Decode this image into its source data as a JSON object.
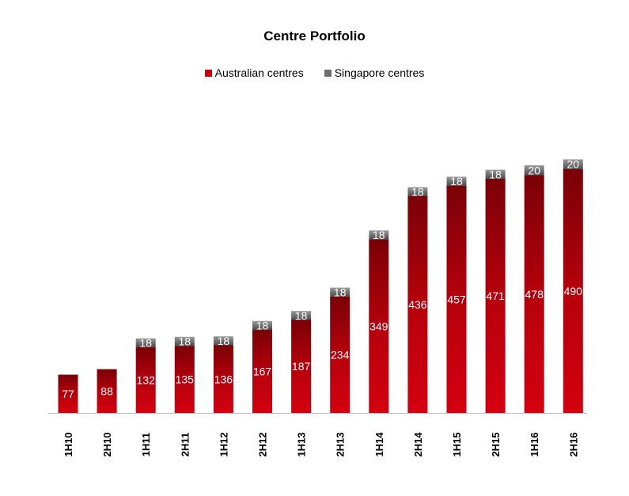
{
  "chart_data": {
    "type": "bar",
    "stacked": true,
    "title": "Centre Portfolio",
    "categories": [
      "1H10",
      "2H10",
      "1H11",
      "2H11",
      "1H12",
      "2H12",
      "1H13",
      "2H13",
      "1H14",
      "2H14",
      "1H15",
      "2H15",
      "1H16",
      "2H16"
    ],
    "series": [
      {
        "name": "Australian centres",
        "color": "#c8000f",
        "values": [
          77,
          88,
          132,
          135,
          136,
          167,
          187,
          234,
          349,
          436,
          457,
          471,
          478,
          490
        ]
      },
      {
        "name": "Singapore centres",
        "color": "#6e6e6e",
        "values": [
          0,
          0,
          18,
          18,
          18,
          18,
          18,
          18,
          18,
          18,
          18,
          18,
          20,
          20
        ]
      }
    ],
    "xlabel": "",
    "ylabel": "",
    "ylim": [
      0,
      510
    ],
    "grid": false,
    "legend_position": "top-center",
    "data_labels": true
  }
}
